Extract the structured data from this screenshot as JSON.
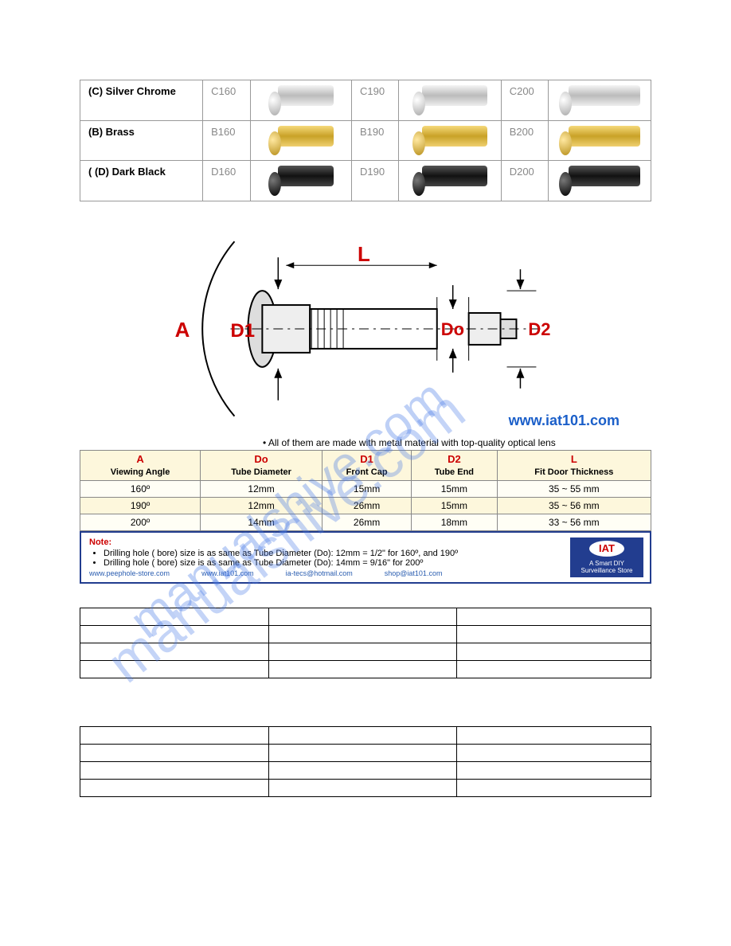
{
  "product_rows": [
    {
      "label": "(C) Silver Chrome",
      "finish": "chrome",
      "codes": [
        "C160",
        "C190",
        "C200"
      ]
    },
    {
      "label": "(B) Brass",
      "finish": "brass",
      "codes": [
        "B160",
        "B190",
        "B200"
      ]
    },
    {
      "label": "( (D) Dark Black",
      "finish": "black",
      "codes": [
        "D160",
        "D190",
        "D200"
      ]
    }
  ],
  "diagram": {
    "labels": {
      "A": "A",
      "D1": "D1",
      "L": "L",
      "Do": "Do",
      "D2": "D2"
    },
    "url": "www.iat101.com",
    "bullet": "•   All of them are made with metal material with top-quality optical lens"
  },
  "watermark_text": "manualshive.com",
  "spec_table": {
    "headers": [
      {
        "sym": "A",
        "sub": "Viewing Angle"
      },
      {
        "sym": "Do",
        "sub": "Tube Diameter"
      },
      {
        "sym": "D1",
        "sub": "Front Cap"
      },
      {
        "sym": "D2",
        "sub": "Tube End"
      },
      {
        "sym": "L",
        "sub": "Fit Door Thickness"
      }
    ],
    "rows": [
      [
        "160º",
        "12mm",
        "15mm",
        "15mm",
        "35 ~ 55 mm"
      ],
      [
        "190º",
        "12mm",
        "26mm",
        "15mm",
        "35 ~ 56 mm"
      ],
      [
        "200º",
        "14mm",
        "26mm",
        "18mm",
        "33 ~ 56 mm"
      ]
    ]
  },
  "footer": {
    "title": "Note:",
    "bullets": [
      "Drilling hole ( bore) size is as same as Tube Diameter (Do): 12mm = 1/2\" for 160º, and  190º",
      "Drilling hole ( bore) size is as same as Tube Diameter (Do): 14mm = 9/16\" for 200º"
    ],
    "links": [
      "www.peephole-store.com",
      "www.iat101.com",
      "ia-tecs@hotmail.com",
      "shop@iat101.com"
    ],
    "badge_logo": "IAT",
    "badge_text": "A Smart DIY Surveillance Store"
  },
  "colors": {
    "red": "#c00000",
    "blue": "#1b5fc9",
    "navy": "#223d8f",
    "cream": "#fdf7dc"
  }
}
